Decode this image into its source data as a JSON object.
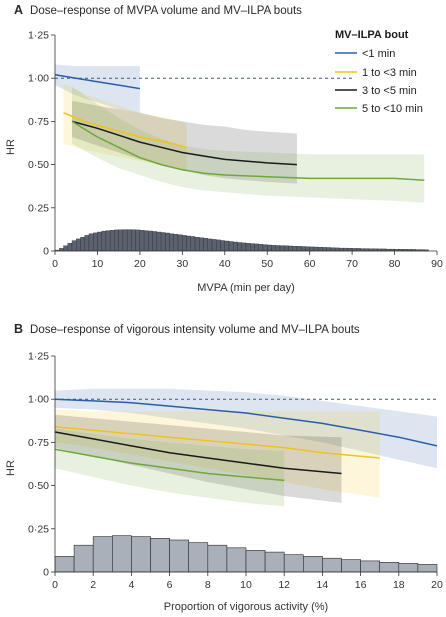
{
  "chart_data": [
    {
      "type": "line",
      "letter": "A",
      "title": "Dose–response of MVPA volume and MV–ILPA bouts",
      "xlabel": "MVPA (min per day)",
      "ylabel": "HR",
      "xlim": [
        0,
        90
      ],
      "ylim": [
        0,
        1.25
      ],
      "x_ticks": [
        "0",
        "10",
        "20",
        "30",
        "40",
        "50",
        "60",
        "70",
        "80",
        "90"
      ],
      "y_ticks": [
        "0",
        "0·25",
        "0·50",
        "0·75",
        "1·00",
        "1·25"
      ],
      "reference_line": 1.0,
      "legend": {
        "title": "MV–ILPA bout",
        "position": "top-right",
        "entries": [
          "<1 min",
          "1 to <3 min",
          "3 to <5 min",
          "5 to <10 min"
        ]
      },
      "series": [
        {
          "name": "<1 min",
          "color": "#2a5ea8",
          "x": [
            0,
            5,
            10,
            15,
            20
          ],
          "y": [
            1.02,
            1.0,
            0.98,
            0.96,
            0.94
          ],
          "lower": [
            0.96,
            0.9,
            0.86,
            0.82,
            0.8
          ],
          "upper": [
            1.08,
            1.07,
            1.07,
            1.07,
            1.07
          ]
        },
        {
          "name": "1 to <3 min",
          "color": "#f0c419",
          "x": [
            2,
            8,
            14,
            20,
            26,
            31
          ],
          "y": [
            0.8,
            0.74,
            0.7,
            0.66,
            0.63,
            0.6
          ],
          "lower": [
            0.62,
            0.58,
            0.55,
            0.52,
            0.49,
            0.46
          ],
          "upper": [
            0.97,
            0.9,
            0.85,
            0.8,
            0.77,
            0.74
          ]
        },
        {
          "name": "3 to <5 min",
          "color": "#1a1a1a",
          "x": [
            4,
            10,
            15,
            20,
            25,
            30,
            35,
            40,
            45,
            50,
            57
          ],
          "y": [
            0.75,
            0.71,
            0.67,
            0.63,
            0.6,
            0.57,
            0.55,
            0.53,
            0.52,
            0.51,
            0.5
          ],
          "lower": [
            0.66,
            0.61,
            0.57,
            0.53,
            0.5,
            0.47,
            0.44,
            0.42,
            0.41,
            0.4,
            0.39
          ],
          "upper": [
            0.87,
            0.84,
            0.82,
            0.8,
            0.77,
            0.75,
            0.73,
            0.72,
            0.7,
            0.69,
            0.68
          ]
        },
        {
          "name": "5 to <10 min",
          "color": "#6ea83a",
          "x": [
            4,
            10,
            15,
            20,
            25,
            30,
            35,
            40,
            50,
            60,
            70,
            80,
            87
          ],
          "y": [
            0.75,
            0.66,
            0.6,
            0.54,
            0.5,
            0.47,
            0.45,
            0.44,
            0.43,
            0.42,
            0.42,
            0.42,
            0.41
          ],
          "lower": [
            0.62,
            0.54,
            0.48,
            0.44,
            0.4,
            0.37,
            0.35,
            0.34,
            0.32,
            0.31,
            0.3,
            0.29,
            0.28
          ],
          "upper": [
            0.95,
            0.85,
            0.77,
            0.7,
            0.65,
            0.61,
            0.59,
            0.58,
            0.57,
            0.56,
            0.56,
            0.56,
            0.56
          ]
        }
      ],
      "histogram": {
        "bin_width": 1,
        "start": 0,
        "values": [
          0.005,
          0.015,
          0.03,
          0.045,
          0.06,
          0.07,
          0.08,
          0.09,
          0.1,
          0.105,
          0.11,
          0.115,
          0.118,
          0.12,
          0.122,
          0.123,
          0.124,
          0.124,
          0.123,
          0.122,
          0.12,
          0.118,
          0.116,
          0.113,
          0.11,
          0.107,
          0.104,
          0.1,
          0.097,
          0.094,
          0.09,
          0.087,
          0.084,
          0.08,
          0.077,
          0.074,
          0.07,
          0.067,
          0.064,
          0.061,
          0.058,
          0.055,
          0.052,
          0.049,
          0.047,
          0.045,
          0.043,
          0.041,
          0.039,
          0.037,
          0.035,
          0.033,
          0.032,
          0.031,
          0.03,
          0.029,
          0.028,
          0.027,
          0.026,
          0.025,
          0.024,
          0.023,
          0.022,
          0.021,
          0.02,
          0.019,
          0.018,
          0.017,
          0.017,
          0.016,
          0.015,
          0.015,
          0.014,
          0.014,
          0.013,
          0.013,
          0.012,
          0.012,
          0.011,
          0.011,
          0.01,
          0.01,
          0.01,
          0.009,
          0.009,
          0.008,
          0.008,
          0.007
        ],
        "color": "#5a6270"
      }
    },
    {
      "type": "line",
      "letter": "B",
      "title": "Dose–response of vigorous intensity volume and MV–ILPA bouts",
      "xlabel": "Proportion of vigorous activity (%)",
      "ylabel": "HR",
      "xlim": [
        0,
        20
      ],
      "ylim": [
        0,
        1.25
      ],
      "x_ticks": [
        "0",
        "2",
        "4",
        "6",
        "8",
        "10",
        "12",
        "14",
        "16",
        "18",
        "20"
      ],
      "y_ticks": [
        "0",
        "0·25",
        "0·50",
        "0·75",
        "1·00",
        "1·25"
      ],
      "reference_line": 1.0,
      "series": [
        {
          "name": "<1 min",
          "color": "#2a5ea8",
          "x": [
            0,
            2,
            4,
            6,
            8,
            10,
            12,
            14,
            16,
            18,
            20
          ],
          "y": [
            1.0,
            0.99,
            0.98,
            0.96,
            0.94,
            0.92,
            0.89,
            0.86,
            0.82,
            0.78,
            0.73
          ],
          "lower": [
            0.95,
            0.94,
            0.92,
            0.89,
            0.86,
            0.83,
            0.79,
            0.75,
            0.7,
            0.65,
            0.6
          ],
          "upper": [
            1.05,
            1.06,
            1.06,
            1.06,
            1.05,
            1.04,
            1.02,
            0.99,
            0.96,
            0.93,
            0.9
          ]
        },
        {
          "name": "1 to <3 min",
          "color": "#f0c419",
          "x": [
            0,
            2,
            4,
            6,
            8,
            10,
            12,
            14,
            17
          ],
          "y": [
            0.84,
            0.82,
            0.8,
            0.78,
            0.76,
            0.74,
            0.72,
            0.69,
            0.66
          ],
          "lower": [
            0.75,
            0.72,
            0.68,
            0.64,
            0.6,
            0.56,
            0.52,
            0.48,
            0.43
          ],
          "upper": [
            0.94,
            0.93,
            0.93,
            0.93,
            0.93,
            0.93,
            0.93,
            0.93,
            0.93
          ]
        },
        {
          "name": "3 to <5 min",
          "color": "#1a1a1a",
          "x": [
            0,
            2,
            4,
            6,
            8,
            10,
            12,
            15
          ],
          "y": [
            0.81,
            0.77,
            0.73,
            0.69,
            0.66,
            0.63,
            0.6,
            0.57
          ],
          "lower": [
            0.72,
            0.67,
            0.62,
            0.57,
            0.52,
            0.48,
            0.44,
            0.4
          ],
          "upper": [
            0.91,
            0.89,
            0.87,
            0.85,
            0.83,
            0.81,
            0.79,
            0.78
          ]
        },
        {
          "name": "5 to <10 min",
          "color": "#6ea83a",
          "x": [
            0,
            2,
            4,
            6,
            8,
            10,
            12
          ],
          "y": [
            0.71,
            0.67,
            0.63,
            0.6,
            0.57,
            0.55,
            0.53
          ],
          "lower": [
            0.6,
            0.55,
            0.5,
            0.46,
            0.43,
            0.4,
            0.38
          ],
          "upper": [
            0.83,
            0.8,
            0.77,
            0.75,
            0.73,
            0.71,
            0.7
          ]
        }
      ],
      "histogram": {
        "bin_width": 1,
        "start": 0,
        "values": [
          0.09,
          0.155,
          0.205,
          0.21,
          0.205,
          0.195,
          0.185,
          0.17,
          0.155,
          0.14,
          0.125,
          0.115,
          0.1,
          0.09,
          0.08,
          0.072,
          0.064,
          0.056,
          0.05,
          0.044
        ],
        "color": "#a9b0ba"
      }
    }
  ]
}
